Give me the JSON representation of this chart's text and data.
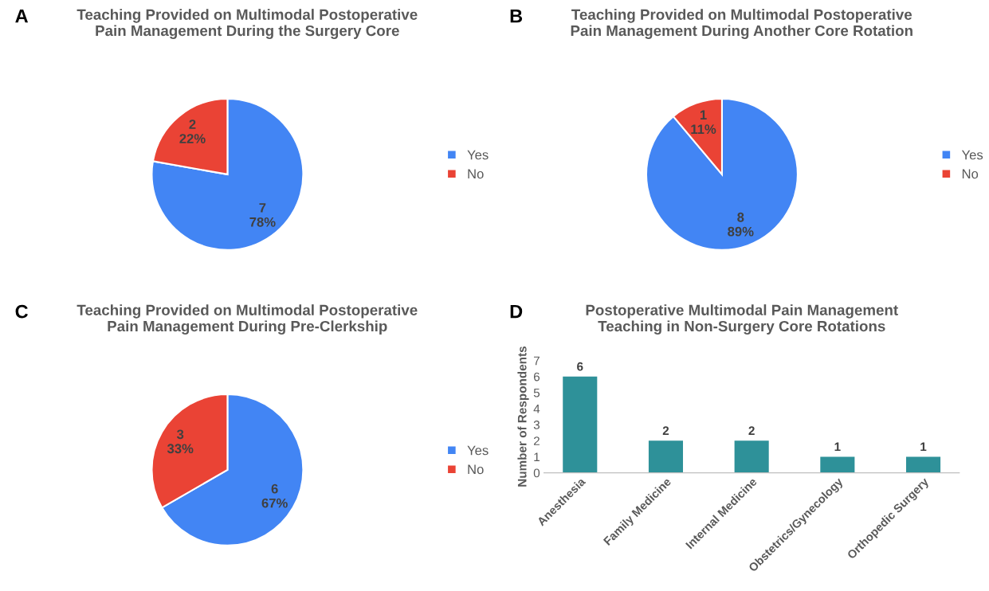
{
  "chart_data": [
    {
      "type": "pie",
      "title": "Teaching Provided on Multimodal Postoperative\nPain Management During the Surgery Core",
      "annotations": [
        "A"
      ],
      "categories": [
        "Yes",
        "No"
      ],
      "values": [
        7,
        2
      ],
      "colors": [
        "#4285f4",
        "#ea4335"
      ],
      "value_labels": [
        "7\n78%",
        "2\n22%"
      ],
      "legend": "right"
    },
    {
      "type": "pie",
      "title": "Teaching Provided on Multimodal Postoperative\nPain Management During Another Core Rotation",
      "annotations": [
        "B"
      ],
      "categories": [
        "Yes",
        "No"
      ],
      "values": [
        8,
        1
      ],
      "colors": [
        "#4285f4",
        "#ea4335"
      ],
      "value_labels": [
        "8\n89%",
        "1\n11%"
      ],
      "legend": "right"
    },
    {
      "type": "pie",
      "title": "Teaching Provided on Multimodal Postoperative\nPain Management During Pre-Clerkship",
      "annotations": [
        "C"
      ],
      "categories": [
        "Yes",
        "No"
      ],
      "values": [
        6,
        3
      ],
      "colors": [
        "#4285f4",
        "#ea4335"
      ],
      "value_labels": [
        "6\n67%",
        "3\n33%"
      ],
      "legend": "right"
    },
    {
      "type": "bar",
      "title": "Postoperative Multimodal Pain Management\nTeaching in Non-Surgery Core Rotations",
      "annotations": [
        "D"
      ],
      "ylabel": "Number of Respondents",
      "categories": [
        "Anesthesia",
        "Family Medicine",
        "Internal Medicine",
        "Obstetrics/Gynecology",
        "Orthopedic Surgery"
      ],
      "values": [
        6,
        2,
        2,
        1,
        1
      ],
      "color": "#2e9199",
      "ylim": [
        0,
        7
      ],
      "yticks": [
        0,
        1,
        2,
        3,
        4,
        5,
        6,
        7
      ],
      "data_labels": true,
      "grid": false
    }
  ]
}
